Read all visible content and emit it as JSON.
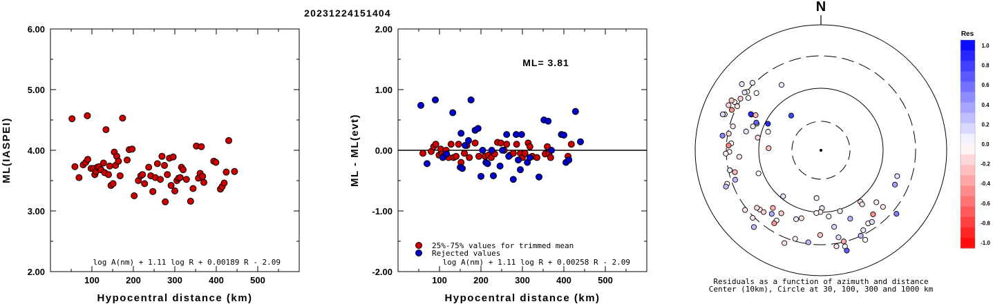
{
  "title": "20231224151404",
  "chart_data": [
    {
      "type": "scatter",
      "title": "",
      "xlabel": "Hypocentral distance (km)",
      "ylabel": "ML(IASPEI)",
      "xlim": [
        0,
        600
      ],
      "ylim": [
        2.0,
        6.0
      ],
      "xticks": [
        "100",
        "200",
        "300",
        "400",
        "500"
      ],
      "yticks": [
        "2.00",
        "3.00",
        "4.00",
        "5.00",
        "6.00"
      ],
      "formula": "log A(nm) + 1.11 log R + 0.00189 R - 2.09",
      "series": [
        {
          "color": "#cc0000",
          "points": [
            [
              52,
              4.52
            ],
            [
              59,
              3.73
            ],
            [
              69,
              3.55
            ],
            [
              79,
              3.76
            ],
            [
              85,
              3.8
            ],
            [
              89,
              4.57
            ],
            [
              90,
              3.85
            ],
            [
              98,
              3.7
            ],
            [
              104,
              3.7
            ],
            [
              107,
              3.6
            ],
            [
              110,
              3.65
            ],
            [
              113,
              3.72
            ],
            [
              117,
              3.73
            ],
            [
              122,
              3.68
            ],
            [
              128,
              3.79
            ],
            [
              131,
              3.63
            ],
            [
              134,
              4.34
            ],
            [
              140,
              3.6
            ],
            [
              143,
              3.74
            ],
            [
              146,
              3.42
            ],
            [
              151,
              3.45
            ],
            [
              154,
              3.97
            ],
            [
              157,
              3.75
            ],
            [
              160,
              3.9
            ],
            [
              164,
              3.82
            ],
            [
              168,
              3.58
            ],
            [
              174,
              4.53
            ],
            [
              185,
              3.84
            ],
            [
              190,
              4.01
            ],
            [
              197,
              4.02
            ],
            [
              202,
              3.25
            ],
            [
              212,
              3.5
            ],
            [
              218,
              3.58
            ],
            [
              222,
              3.6
            ],
            [
              227,
              3.45
            ],
            [
              237,
              3.72
            ],
            [
              242,
              3.58
            ],
            [
              247,
              3.32
            ],
            [
              253,
              3.55
            ],
            [
              258,
              3.78
            ],
            [
              265,
              3.52
            ],
            [
              269,
              3.9
            ],
            [
              275,
              3.75
            ],
            [
              277,
              3.15
            ],
            [
              282,
              3.6
            ],
            [
              287,
              3.87
            ],
            [
              291,
              3.42
            ],
            [
              296,
              3.89
            ],
            [
              300,
              3.33
            ],
            [
              305,
              3.5
            ],
            [
              309,
              3.54
            ],
            [
              313,
              3.55
            ],
            [
              316,
              3.72
            ],
            [
              320,
              3.68
            ],
            [
              328,
              3.52
            ],
            [
              338,
              3.16
            ],
            [
              344,
              3.37
            ],
            [
              352,
              4.07
            ],
            [
              357,
              3.54
            ],
            [
              361,
              3.62
            ],
            [
              364,
              4.06
            ],
            [
              367,
              3.57
            ],
            [
              370,
              3.47
            ],
            [
              394,
              3.82
            ],
            [
              399,
              3.8
            ],
            [
              410,
              3.36
            ],
            [
              414,
              3.4
            ],
            [
              419,
              3.46
            ],
            [
              424,
              3.64
            ],
            [
              430,
              4.16
            ],
            [
              444,
              3.65
            ]
          ]
        }
      ]
    },
    {
      "type": "scatter",
      "title": "",
      "xlabel": "Hypocentral distance (km)",
      "ylabel": "ML - ML(evt)",
      "xlim": [
        0,
        600
      ],
      "ylim": [
        -2.0,
        2.0
      ],
      "xticks": [
        "100",
        "200",
        "300",
        "400",
        "500"
      ],
      "yticks": [
        "-2.00",
        "-1.00",
        "0.00",
        "1.00",
        "2.00"
      ],
      "annotation": "ML= 3.81",
      "formula": "log A(nm) + 1.11 log R + 0.00258 R - 2.09",
      "hline": 0.0,
      "series": [
        {
          "name": "25%-75% values for trimmed mean",
          "color": "#cc0000",
          "points": [
            [
              60,
              -0.05
            ],
            [
              80,
              -0.02
            ],
            [
              86,
              0.06
            ],
            [
              91,
              0.1
            ],
            [
              99,
              -0.08
            ],
            [
              103,
              0.02
            ],
            [
              106,
              -0.06
            ],
            [
              110,
              -0.1
            ],
            [
              116,
              0.0
            ],
            [
              122,
              -0.12
            ],
            [
              128,
              0.1
            ],
            [
              134,
              -0.12
            ],
            [
              140,
              -0.1
            ],
            [
              146,
              0.1
            ],
            [
              152,
              -0.2
            ],
            [
              160,
              -0.05
            ],
            [
              166,
              0.08
            ],
            [
              172,
              -0.12
            ],
            [
              186,
              0.12
            ],
            [
              195,
              -0.1
            ],
            [
              210,
              -0.1
            ],
            [
              218,
              -0.08
            ],
            [
              225,
              -0.12
            ],
            [
              233,
              -0.06
            ],
            [
              240,
              0.13
            ],
            [
              248,
              0.12
            ],
            [
              256,
              0.0
            ],
            [
              262,
              0.1
            ],
            [
              270,
              -0.08
            ],
            [
              278,
              -0.05
            ],
            [
              286,
              0.1
            ],
            [
              295,
              -0.05
            ],
            [
              300,
              -0.12
            ],
            [
              306,
              -0.05
            ],
            [
              314,
              0.12
            ],
            [
              318,
              0.06
            ],
            [
              324,
              -0.1
            ],
            [
              335,
              -0.12
            ],
            [
              355,
              -0.06
            ],
            [
              360,
              0.06
            ],
            [
              364,
              -0.05
            ],
            [
              368,
              -0.12
            ],
            [
              410,
              -0.1
            ],
            [
              418,
              0.1
            ]
          ]
        },
        {
          "name": "Rejected values",
          "color": "#0000cc",
          "points": [
            [
              55,
              0.74
            ],
            [
              70,
              -0.22
            ],
            [
              90,
              0.83
            ],
            [
              108,
              -0.12
            ],
            [
              117,
              -0.06
            ],
            [
              132,
              0.62
            ],
            [
              150,
              -0.28
            ],
            [
              152,
              0.28
            ],
            [
              155,
              -0.3
            ],
            [
              162,
              0.08
            ],
            [
              170,
              0.16
            ],
            [
              176,
              0.83
            ],
            [
              186,
              0.33
            ],
            [
              193,
              0.36
            ],
            [
              200,
              -0.43
            ],
            [
              204,
              0.0
            ],
            [
              212,
              -0.2
            ],
            [
              216,
              -0.22
            ],
            [
              226,
              0.0
            ],
            [
              230,
              -0.42
            ],
            [
              246,
              -0.26
            ],
            [
              252,
              0.0
            ],
            [
              262,
              0.26
            ],
            [
              267,
              -0.1
            ],
            [
              278,
              -0.48
            ],
            [
              285,
              0.26
            ],
            [
              290,
              -0.16
            ],
            [
              295,
              -0.32
            ],
            [
              298,
              0.26
            ],
            [
              312,
              -0.2
            ],
            [
              318,
              -0.12
            ],
            [
              340,
              -0.44
            ],
            [
              352,
              0.5
            ],
            [
              362,
              0.48
            ],
            [
              370,
              0.0
            ],
            [
              394,
              0.26
            ],
            [
              400,
              0.25
            ],
            [
              405,
              -0.2
            ],
            [
              412,
              -0.16
            ],
            [
              428,
              0.64
            ],
            [
              440,
              0.14
            ]
          ]
        }
      ]
    }
  ],
  "polar": {
    "north_label": "N",
    "caption1": "Residuals as a function of azimuth and distance",
    "caption2": "Center (10km), Circle at 30, 100, 300 and 1000 km",
    "colorbar_title": "Res",
    "colorbar_ticks": [
      "1.0",
      "0.8",
      "0.6",
      "0.4",
      "0.2",
      "0.0",
      "-0.2",
      "-0.4",
      "-0.6",
      "-0.8",
      "-1.0"
    ]
  }
}
